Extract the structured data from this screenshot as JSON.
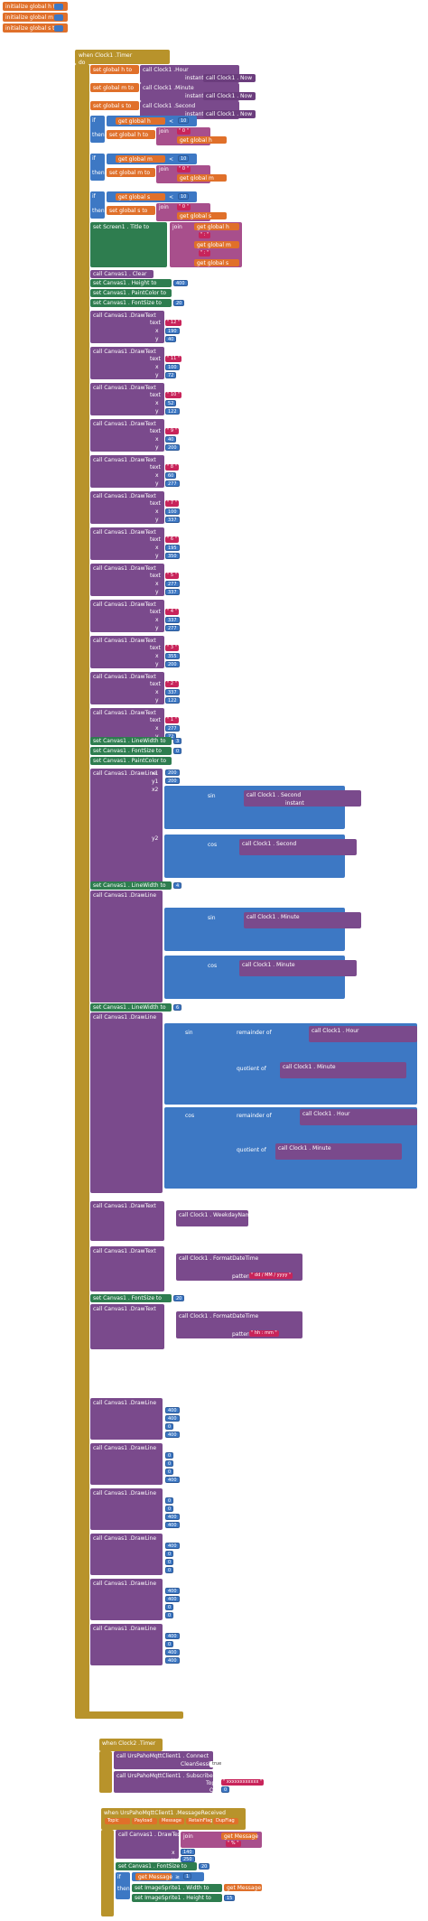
{
  "globals": [
    {
      "label": "initialize global",
      "name": "h",
      "value": "0"
    },
    {
      "label": "initialize global",
      "name": "m",
      "value": "0"
    },
    {
      "label": "initialize global",
      "name": "s",
      "value": "0"
    }
  ],
  "timer_event": {
    "when": "when",
    "component": "Clock1",
    "event": ".Timer",
    "do": "do"
  },
  "set_blocks": [
    {
      "set": "set global h",
      "call": "call",
      "comp": "Clock1",
      "method": ".Hour",
      "instant": "instant",
      "now": "Now"
    },
    {
      "set": "set global m",
      "call": "call",
      "comp": "Clock1",
      "method": ".Minute",
      "instant": "instant",
      "now": "Now"
    },
    {
      "set": "set global s",
      "call": "call",
      "comp": "Clock1",
      "method": ".Second",
      "instant": "instant",
      "now": "Now"
    }
  ],
  "if_blocks": [
    {
      "if": "if",
      "get": "get global h",
      "op": "<",
      "num": "10",
      "then": "then",
      "set": "set global h",
      "join": "join",
      "zero": "0"
    },
    {
      "if": "if",
      "get": "get global m",
      "op": "<",
      "num": "10",
      "then": "then",
      "set": "set global m",
      "join": "join",
      "zero": "0"
    },
    {
      "if": "if",
      "get": "get global s",
      "op": "<",
      "num": "10",
      "then": "then",
      "set": "set global s",
      "join": "join",
      "zero": "0"
    }
  ],
  "screen_title": {
    "set": "set Screen1 . Title",
    "to": "to",
    "join": "join",
    "h": "get global h",
    "colon1": ":",
    "m": "get global m",
    "colon2": ":",
    "s": "get global s"
  },
  "canvas_clear": "call Canvas1 . Clear",
  "canvas_props": [
    {
      "set": "set Canvas1 . Height",
      "to": "to",
      "val": "400"
    },
    {
      "set": "set Canvas1 . PaintColor",
      "to": "to"
    },
    {
      "set": "set Canvas1 . FontSize",
      "to": "to",
      "val": "20"
    }
  ],
  "draw_texts": [
    {
      "text": "12",
      "x": "190",
      "y": "40"
    },
    {
      "text": "11",
      "x": "100",
      "y": "72"
    },
    {
      "text": "10",
      "x": "52",
      "y": "122"
    },
    {
      "text": "9",
      "x": "40",
      "y": "200"
    },
    {
      "text": "8",
      "x": "60",
      "y": "277"
    },
    {
      "text": "7",
      "x": "100",
      "y": "337"
    },
    {
      "text": "6",
      "x": "195",
      "y": "350"
    },
    {
      "text": "5",
      "x": "277",
      "y": "337"
    },
    {
      "text": "4",
      "x": "337",
      "y": "277"
    },
    {
      "text": "3",
      "x": "355",
      "y": "200"
    },
    {
      "text": "2",
      "x": "337",
      "y": "122"
    },
    {
      "text": "1",
      "x": "277",
      "y": "72"
    }
  ],
  "labels": {
    "call": "call",
    "canvas": "Canvas1",
    "drawtext": ".DrawText",
    "drawline": ".DrawLine",
    "text": "text",
    "x": "x",
    "y": "y",
    "x1": "x1",
    "y1": "y1",
    "x2": "x2",
    "y2": "y2",
    "sin": "sin",
    "cos": "cos",
    "remainder": "remainder of",
    "quotient": "quotient of",
    "weekday": "call Clock1 . WeekdayName",
    "format": "call Clock1 . FormatDateTime",
    "pattern": "pattern",
    "instant": "instant"
  },
  "line_settings": [
    {
      "set": "set Canvas1 . LineWidth",
      "to": "to",
      "val": "3"
    },
    {
      "set": "set Canvas1 . FontSize",
      "to": "to",
      "val": "0"
    },
    {
      "set": "set Canvas1 . PaintColor",
      "to": "to"
    }
  ],
  "drawline_values": [
    "200",
    "200",
    "200",
    "200",
    "100",
    "200",
    "200",
    "120",
    "200",
    "200",
    "200",
    "200",
    "12",
    "90",
    "30",
    "90"
  ],
  "date_patterns": [
    "dd / MM / yyyy",
    "hh : mm"
  ],
  "final_lines": [
    "400",
    "400",
    "0",
    "400",
    "0",
    "0",
    "0",
    "400",
    "0",
    "0",
    "400",
    "400",
    "400",
    "0",
    "0",
    "0",
    "400",
    "400",
    "0",
    "0",
    "400",
    "0",
    "400",
    "400"
  ],
  "clock2": {
    "when": "when",
    "comp": "Clock2",
    "event": ".Timer",
    "do": "do",
    "connect": "call UrsPahoMqttClient1 . Connect",
    "clean": "CleanSession",
    "clean_val": "true",
    "subscribe": "call UrsPahoMqttClient1 . Subscribe",
    "topic": "Topic",
    "topic_val": "xxxxxxxxxxxx",
    "qos": "QoS",
    "qos_val": "0"
  },
  "message_received": {
    "when": "when",
    "comp": "UrsPahoMqttClient1",
    "event": ".MessageReceived",
    "params": [
      "Topic",
      "Payload",
      "Message",
      "RetainFlag",
      "DupFlag"
    ],
    "do": "do",
    "drawtext": "call Canvas1 . DrawText",
    "text": "text",
    "join": "join",
    "get": "get Message",
    "pct": "%",
    "x": "x",
    "x_val": "140",
    "y": "y",
    "y_val": "250",
    "fontsize": "set Canvas1 . FontSize",
    "fs_val": "20",
    "if": "if",
    "get2": "get Message",
    "gt": "≥",
    "gt_val": "1",
    "then": "then",
    "set_w": "set ImageSprite1 . Width",
    "set_h": "set ImageSprite1 . Height",
    "w_to": "get Message",
    "h_val": "15"
  }
}
